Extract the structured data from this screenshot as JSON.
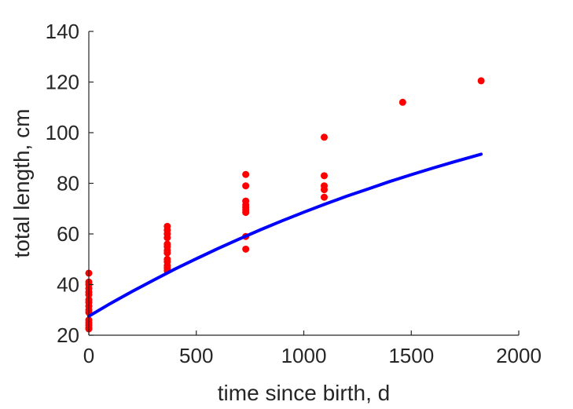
{
  "chart_data": {
    "type": "scatter",
    "title": "",
    "xlabel": "time since birth, d",
    "ylabel": "total length, cm",
    "xlim": [
      0,
      2000
    ],
    "ylim": [
      20,
      140
    ],
    "x_ticks": [
      0,
      500,
      1000,
      1500,
      2000
    ],
    "x_tick_labels": [
      "0",
      "500",
      "1000",
      "1500",
      "2000"
    ],
    "y_ticks": [
      20,
      40,
      60,
      80,
      100,
      120,
      140
    ],
    "y_tick_labels": [
      "20",
      "40",
      "60",
      "80",
      "100",
      "120",
      "140"
    ],
    "grid": false,
    "legend": "none",
    "series": [
      {
        "kind": "scatter",
        "color": "#ff0000",
        "points": [
          [
            0,
            44.5
          ],
          [
            0,
            41
          ],
          [
            0,
            40
          ],
          [
            0,
            38.5
          ],
          [
            0,
            37
          ],
          [
            0,
            36
          ],
          [
            0,
            34
          ],
          [
            0,
            33
          ],
          [
            0,
            31.5
          ],
          [
            0,
            30
          ],
          [
            0,
            29
          ],
          [
            0,
            26
          ],
          [
            0,
            25
          ],
          [
            0,
            24
          ],
          [
            0,
            23
          ],
          [
            0,
            22.5
          ],
          [
            365,
            63
          ],
          [
            365,
            61.5
          ],
          [
            365,
            60
          ],
          [
            365,
            58.5
          ],
          [
            365,
            56
          ],
          [
            365,
            55
          ],
          [
            365,
            53.5
          ],
          [
            365,
            52.5
          ],
          [
            365,
            50
          ],
          [
            365,
            49
          ],
          [
            365,
            47.5
          ],
          [
            365,
            46.5
          ],
          [
            365,
            45.5
          ],
          [
            730,
            83.5
          ],
          [
            730,
            79
          ],
          [
            730,
            73
          ],
          [
            730,
            71.5
          ],
          [
            730,
            70.5
          ],
          [
            730,
            69.5
          ],
          [
            730,
            68.5
          ],
          [
            730,
            59
          ],
          [
            730,
            54
          ],
          [
            1095,
            98.2
          ],
          [
            1095,
            83
          ],
          [
            1095,
            79
          ],
          [
            1095,
            77.5
          ],
          [
            1095,
            74.5
          ],
          [
            1460,
            112
          ],
          [
            1825,
            120.5
          ]
        ]
      },
      {
        "kind": "line",
        "color": "#0000ff",
        "points": [
          [
            0,
            27.5
          ],
          [
            100,
            32.5
          ],
          [
            200,
            37.2
          ],
          [
            300,
            41.7
          ],
          [
            400,
            46.1
          ],
          [
            500,
            50.2
          ],
          [
            600,
            54.2
          ],
          [
            700,
            58
          ],
          [
            800,
            61.7
          ],
          [
            900,
            65.2
          ],
          [
            1000,
            68.6
          ],
          [
            1100,
            71.8
          ],
          [
            1200,
            74.9
          ],
          [
            1300,
            77.8
          ],
          [
            1400,
            80.7
          ],
          [
            1500,
            83.4
          ],
          [
            1600,
            86
          ],
          [
            1700,
            88.5
          ],
          [
            1825,
            91.5
          ]
        ]
      }
    ]
  }
}
